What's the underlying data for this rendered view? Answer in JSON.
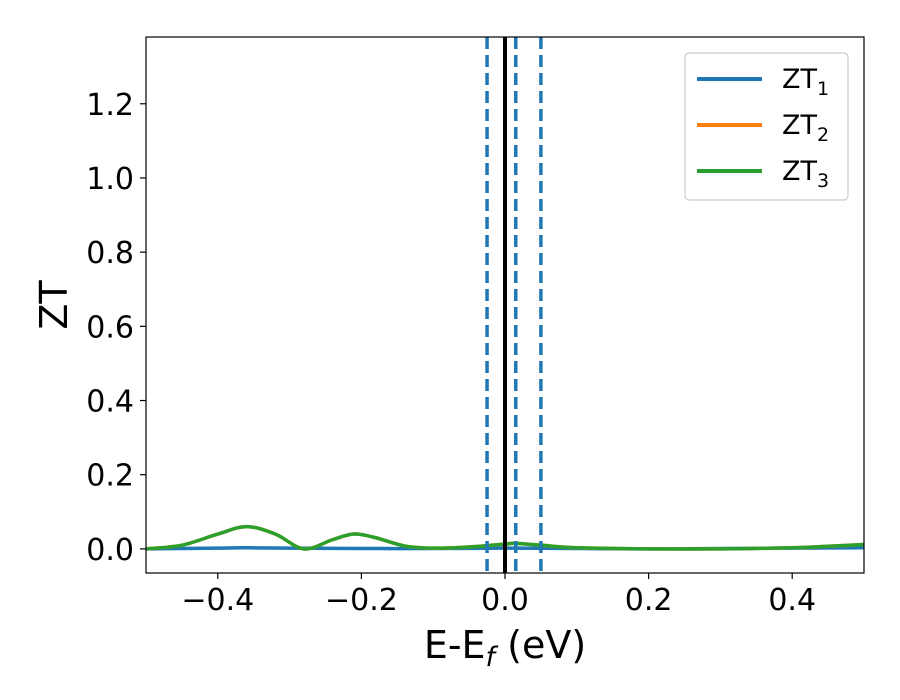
{
  "chart_data": {
    "type": "line",
    "xlabel": "E-E",
    "xlabel_sub": "f",
    "xlabel_unit": " (eV)",
    "ylabel": "ZT",
    "xlim": [
      -0.5,
      0.5
    ],
    "ylim": [
      -0.065,
      1.38
    ],
    "xticks": [
      -0.4,
      -0.2,
      0.0,
      0.2,
      0.4
    ],
    "xtick_labels": [
      "−0.4",
      "−0.2",
      "0.0",
      "0.2",
      "0.4"
    ],
    "yticks": [
      0.0,
      0.2,
      0.4,
      0.6,
      0.8,
      1.0,
      1.2
    ],
    "ytick_labels": [
      "0.0",
      "0.2",
      "0.4",
      "0.6",
      "0.8",
      "1.0",
      "1.2"
    ],
    "grid": false,
    "legend_position": "top-right",
    "vlines": [
      {
        "x": 0.0,
        "color": "#000000",
        "style": "solid"
      },
      {
        "x": -0.025,
        "color": "#1f77b4",
        "style": "dashed"
      },
      {
        "x": 0.015,
        "color": "#1f77b4",
        "style": "dashed"
      },
      {
        "x": 0.05,
        "color": "#1f77b4",
        "style": "dashed"
      }
    ],
    "series": [
      {
        "name": "ZT",
        "name_sub": "1",
        "color": "#1f77b4",
        "x": [
          -0.5,
          -0.45,
          -0.4,
          -0.36,
          -0.3,
          -0.2,
          -0.1,
          0.0,
          0.1,
          0.2,
          0.3,
          0.4,
          0.5
        ],
        "y": [
          0.0,
          0.001,
          0.002,
          0.003,
          0.002,
          0.001,
          0.001,
          0.002,
          0.001,
          0.0,
          0.001,
          0.002,
          0.003
        ]
      },
      {
        "name": "ZT",
        "name_sub": "2",
        "color": "#ff7f0e",
        "x": [
          -0.5,
          -0.45,
          -0.4,
          -0.36,
          -0.32,
          -0.28,
          -0.24,
          -0.21,
          -0.18,
          -0.14,
          -0.1,
          -0.05,
          0.0,
          0.015,
          0.05,
          0.1,
          0.2,
          0.3,
          0.4,
          0.45,
          0.5
        ],
        "y": [
          0.0,
          0.01,
          0.04,
          0.06,
          0.04,
          0.0,
          0.025,
          0.04,
          0.03,
          0.008,
          0.002,
          0.005,
          0.013,
          0.015,
          0.01,
          0.003,
          0.0,
          0.0,
          0.003,
          0.007,
          0.012
        ]
      },
      {
        "name": "ZT",
        "name_sub": "3",
        "color": "#2ca02c",
        "x": [
          -0.5,
          -0.45,
          -0.4,
          -0.36,
          -0.32,
          -0.28,
          -0.24,
          -0.21,
          -0.18,
          -0.14,
          -0.1,
          -0.05,
          0.0,
          0.015,
          0.05,
          0.1,
          0.2,
          0.3,
          0.4,
          0.45,
          0.5
        ],
        "y": [
          0.0,
          0.01,
          0.04,
          0.06,
          0.04,
          0.0,
          0.025,
          0.04,
          0.03,
          0.008,
          0.002,
          0.005,
          0.013,
          0.015,
          0.01,
          0.003,
          0.0,
          0.0,
          0.003,
          0.007,
          0.012
        ]
      }
    ]
  }
}
